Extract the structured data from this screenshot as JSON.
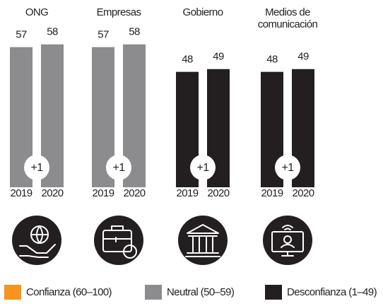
{
  "chart_data": {
    "type": "bar",
    "categories": [
      "ONG",
      "Empresas",
      "Gobierno",
      "Medios de comunicación"
    ],
    "series": [
      {
        "name": "2019",
        "values": [
          57,
          57,
          48,
          48
        ],
        "colors": [
          "#8c8c8e",
          "#8c8c8e",
          "#231f20",
          "#231f20"
        ]
      },
      {
        "name": "2020",
        "values": [
          58,
          58,
          49,
          49
        ],
        "colors": [
          "#8c8c8e",
          "#8c8c8e",
          "#231f20",
          "#231f20"
        ]
      }
    ],
    "changes": {
      "values": [
        1,
        1,
        1,
        1
      ],
      "value_labels": [
        "+1",
        "+1",
        "+1",
        "+1"
      ]
    },
    "ylim": [
      6,
      60
    ],
    "legend": [
      {
        "name": "Confianza (60–100)",
        "color": "#f7941d"
      },
      {
        "name": "Neutral (50–59)",
        "color": "#8c8c8e"
      },
      {
        "name": "Desconfianza (1–49)",
        "color": "#231f20"
      }
    ]
  }
}
